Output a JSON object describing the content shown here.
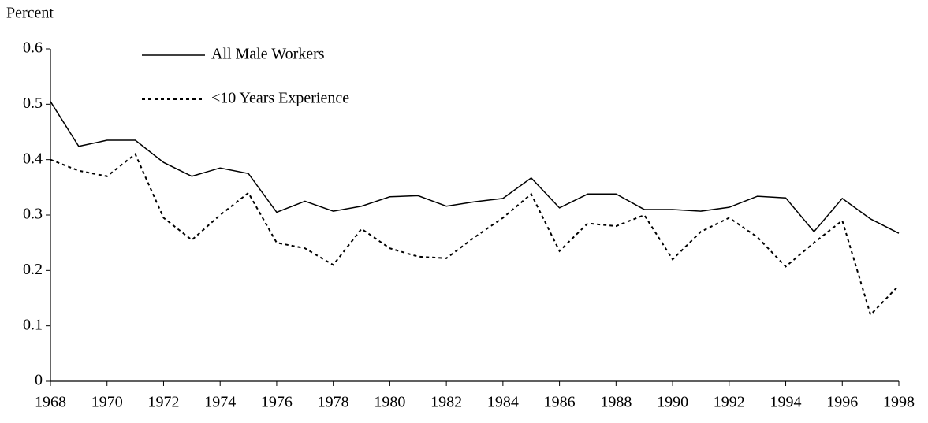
{
  "chart_data": {
    "type": "line",
    "y_label": "Percent",
    "x": [
      1968,
      1969,
      1970,
      1971,
      1972,
      1973,
      1974,
      1975,
      1976,
      1977,
      1978,
      1979,
      1980,
      1981,
      1982,
      1983,
      1984,
      1985,
      1986,
      1987,
      1988,
      1989,
      1990,
      1991,
      1992,
      1993,
      1994,
      1995,
      1996,
      1997,
      1998
    ],
    "series": [
      {
        "name": "All Male Workers",
        "color": "#000000",
        "dash": "solid",
        "values": [
          0.505,
          0.424,
          0.435,
          0.435,
          0.395,
          0.37,
          0.385,
          0.375,
          0.305,
          0.325,
          0.307,
          0.316,
          0.333,
          0.335,
          0.316,
          0.324,
          0.33,
          0.367,
          0.313,
          0.338,
          0.338,
          0.31,
          0.31,
          0.307,
          0.314,
          0.334,
          0.331,
          0.27,
          0.33,
          0.293,
          0.267
        ]
      },
      {
        "name": "<10 Years Experience",
        "color": "#000000",
        "dash": "dashed",
        "values": [
          0.4,
          0.38,
          0.37,
          0.41,
          0.295,
          0.255,
          0.3,
          0.34,
          0.25,
          0.24,
          0.21,
          0.275,
          0.24,
          0.225,
          0.222,
          0.26,
          0.295,
          0.338,
          0.235,
          0.285,
          0.28,
          0.3,
          0.22,
          0.27,
          0.295,
          0.26,
          0.207,
          0.25,
          0.29,
          0.12,
          0.173
        ]
      }
    ],
    "xlim": [
      1968,
      1998
    ],
    "xticks": [
      1968,
      1970,
      1972,
      1974,
      1976,
      1978,
      1980,
      1982,
      1984,
      1986,
      1988,
      1990,
      1992,
      1994,
      1996,
      1998
    ],
    "ylim": [
      0,
      0.6
    ],
    "yticks": [
      0,
      0.1,
      0.2,
      0.3,
      0.4,
      0.5,
      0.6
    ],
    "grid": false,
    "legend": "upper left"
  }
}
